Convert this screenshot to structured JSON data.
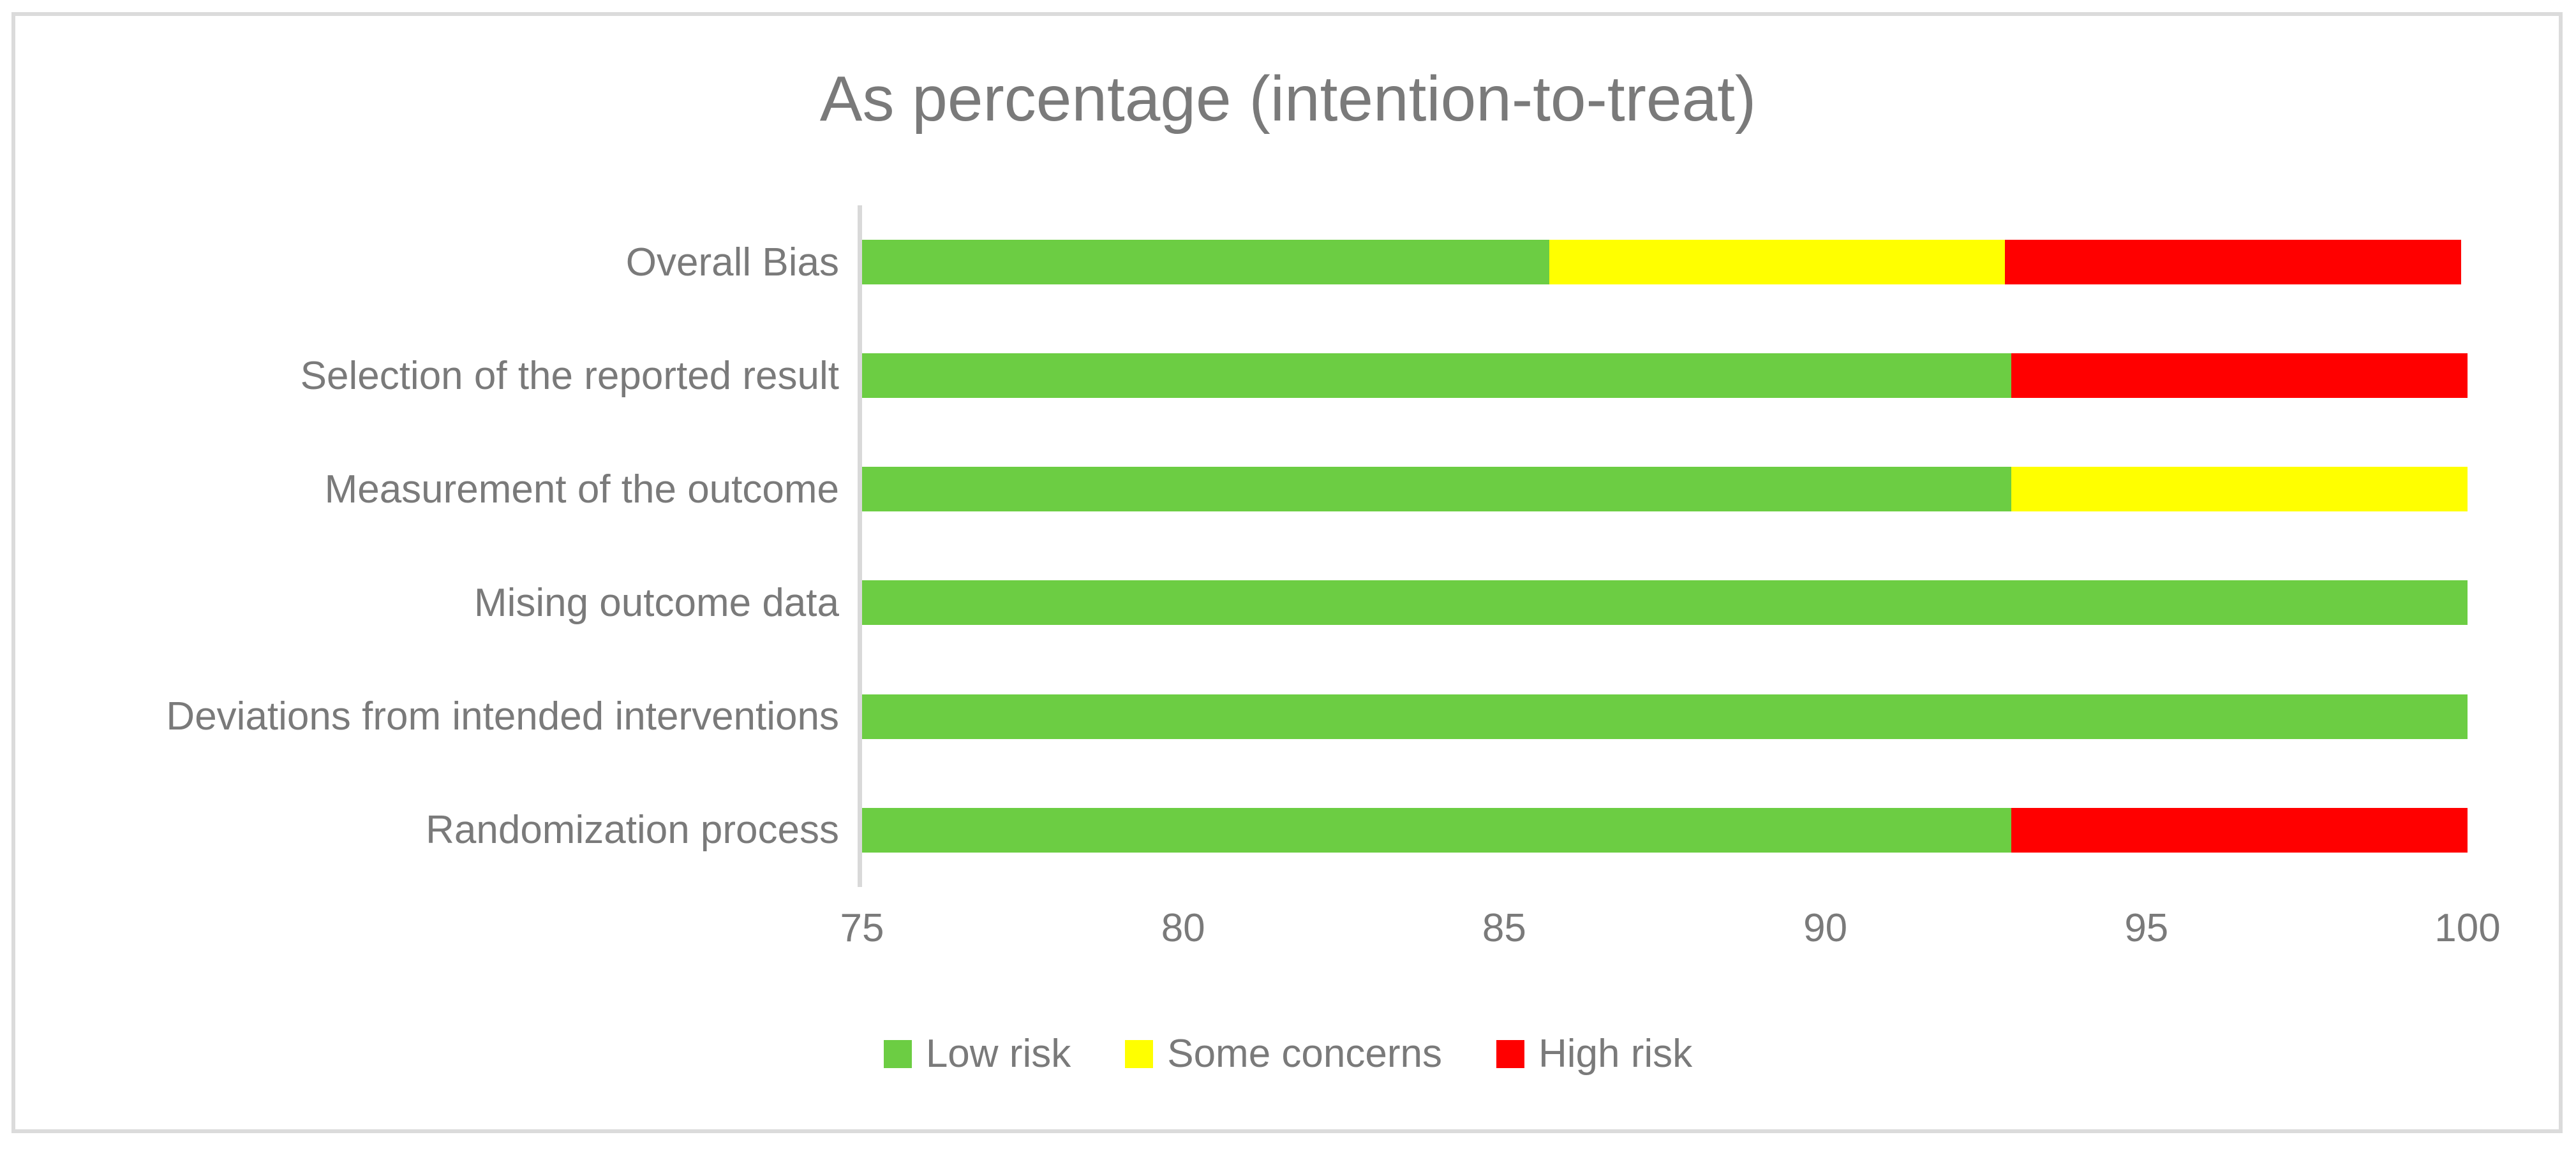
{
  "chart_data": {
    "type": "bar",
    "orientation": "horizontal",
    "stacked": true,
    "title": "As percentage (intention-to-treat)",
    "categories": [
      "Overall Bias",
      "Selection of the reported result",
      "Measurement of the outcome",
      "Mising outcome data",
      "Deviations from intended interventions",
      "Randomization process"
    ],
    "series": [
      {
        "name": "Low risk",
        "color": "#6CCD43",
        "values": [
          85.7,
          92.9,
          92.9,
          100,
          100,
          92.9
        ]
      },
      {
        "name": "Some concerns",
        "color": "#FFFF00",
        "values": [
          7.1,
          0,
          7.1,
          0,
          0,
          0
        ]
      },
      {
        "name": "High risk",
        "color": "#FF0000",
        "values": [
          7.1,
          7.1,
          0,
          0,
          0,
          7.1
        ]
      }
    ],
    "x_axis": {
      "min": 75,
      "max": 100,
      "ticks": [
        75,
        80,
        85,
        90,
        95,
        100
      ]
    },
    "legend": {
      "position": "bottom",
      "entries": [
        "Low risk",
        "Some concerns",
        "High risk"
      ]
    },
    "grid": false,
    "units": "percent",
    "colors": {
      "text": "#7A7A7A",
      "axis_line": "#D9D9D9",
      "frame_border": "#DBDBDB",
      "background": "#FFFFFF"
    }
  }
}
